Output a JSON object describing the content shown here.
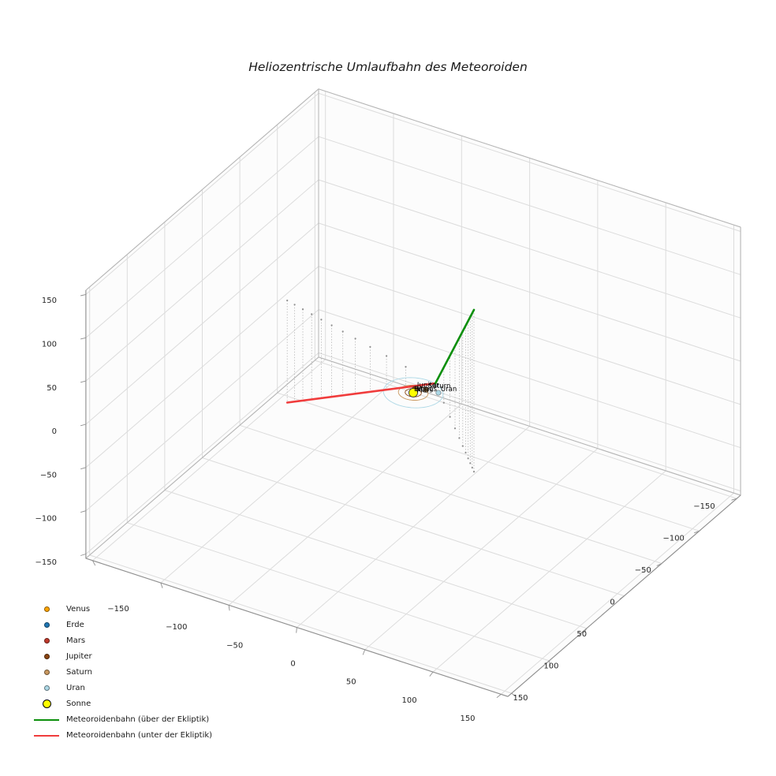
{
  "title": "Heliozentrische Umlaufbahn des Meteoroiden",
  "chart_data": {
    "type": "scatter",
    "projection": "3d",
    "title": "Heliozentrische Umlaufbahn des Meteoroiden",
    "axes": {
      "lim": 155,
      "x_ticks": [
        -150,
        -100,
        -50,
        0,
        50,
        100,
        150
      ],
      "y_ticks": [
        -150,
        -100,
        -50,
        0,
        50,
        100,
        150
      ],
      "z_ticks": [
        -150,
        -100,
        -50,
        0,
        50,
        100,
        150
      ],
      "grid": true
    },
    "sun": {
      "key": "sonne",
      "name": "Sonne",
      "color": "#ffff00",
      "position": [
        0,
        0,
        0
      ]
    },
    "bodies": [
      {
        "key": "venus",
        "name": "Venus",
        "color": "#ffa500",
        "orbit_radius": 0.72,
        "position": [
          0.5,
          -0.5,
          0
        ]
      },
      {
        "key": "erde",
        "name": "Erde",
        "color": "#1f77b4",
        "orbit_radius": 1.0,
        "position": [
          -0.9,
          0.5,
          0
        ]
      },
      {
        "key": "mars",
        "name": "Mars",
        "color": "#c0392b",
        "orbit_radius": 1.52,
        "position": [
          1.3,
          0.8,
          0
        ]
      },
      {
        "key": "jupiter",
        "name": "Jupiter",
        "color": "#8b4513",
        "orbit_radius": 5.2,
        "position": [
          -1.6,
          -4.9,
          0
        ]
      },
      {
        "key": "saturn",
        "name": "Saturn",
        "color": "#c9985f",
        "orbit_radius": 9.54,
        "position": [
          5.0,
          -8.1,
          0
        ]
      },
      {
        "key": "uran",
        "name": "Uran",
        "color": "#add8e6",
        "orbit_radius": 19.19,
        "position": [
          13.4,
          -9.2,
          0
        ]
      }
    ],
    "trajectory": {
      "above": {
        "label": "Meteoroidenbahn (über der Ekliptik)",
        "color": "#0c8f0c",
        "points": [
          [
            6,
            -18.6,
            0
          ],
          [
            81,
            66,
            187
          ]
        ]
      },
      "below": {
        "label": "Meteoroidenbahn (unter der Ekliptik)",
        "color": "#f03c3c",
        "points": [
          [
            -124,
            -57,
            -118
          ],
          [
            6,
            -18.6,
            0
          ]
        ]
      }
    },
    "stems": {
      "color": "#b8b8b8",
      "dot_color": "#909090",
      "below_fractions": [
        0,
        0.05,
        0.105,
        0.165,
        0.23,
        0.3,
        0.375,
        0.46,
        0.56,
        0.67,
        0.8
      ],
      "above_fractions": [
        0,
        0.045,
        0.095,
        0.15,
        0.215,
        0.29,
        0.38,
        0.49,
        0.62,
        0.78
      ]
    },
    "legend": [
      {
        "key": "venus",
        "label": "Venus",
        "marker": "dot",
        "color": "#ffa500"
      },
      {
        "key": "erde",
        "label": "Erde",
        "marker": "dot",
        "color": "#1f77b4"
      },
      {
        "key": "mars",
        "label": "Mars",
        "marker": "dot",
        "color": "#c0392b"
      },
      {
        "key": "jupiter",
        "label": "Jupiter",
        "marker": "dot",
        "color": "#8b4513"
      },
      {
        "key": "saturn",
        "label": "Saturn",
        "marker": "dot",
        "color": "#c9985f"
      },
      {
        "key": "uran",
        "label": "Uran",
        "marker": "dot",
        "color": "#add8e6"
      },
      {
        "key": "sonne",
        "label": "Sonne",
        "marker": "dot-large",
        "color": "#ffff00"
      },
      {
        "key": "meteoroidenbahn-ueber",
        "label": "Meteoroidenbahn (über der Ekliptik)",
        "marker": "line",
        "color": "#0c8f0c"
      },
      {
        "key": "meteoroidenbahn-unter",
        "label": "Meteoroidenbahn (unter der Ekliptik)",
        "marker": "line",
        "color": "#f03c3c"
      }
    ]
  }
}
